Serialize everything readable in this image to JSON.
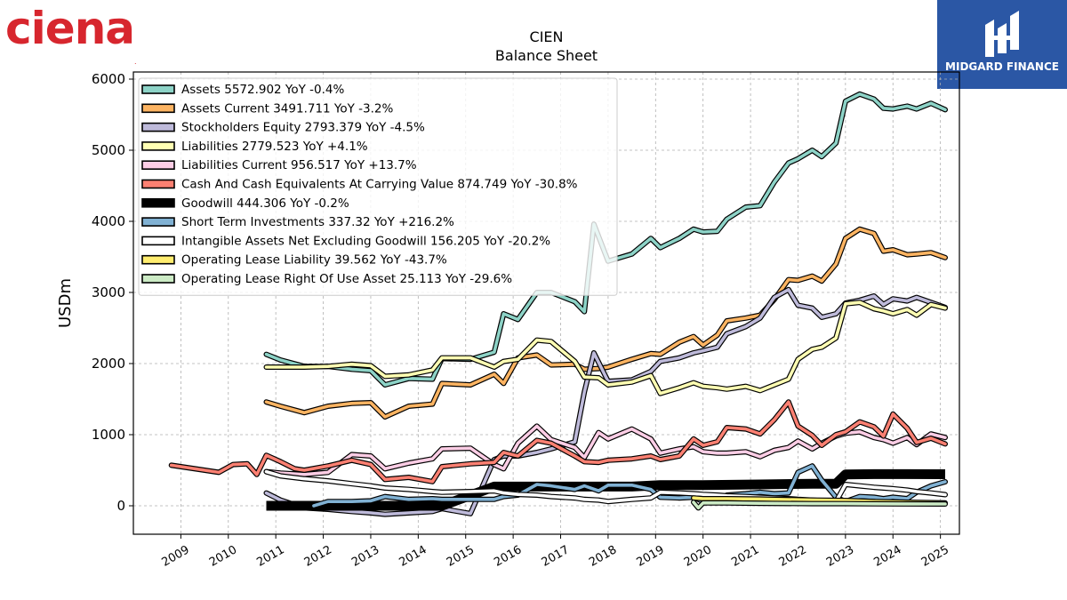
{
  "logos": {
    "left_text": "ciena",
    "left_mark": ".",
    "right_text": "MIDGARD FINANCE"
  },
  "colors": {
    "ciena_red": "#d7262e",
    "midgard_blue": "#2b57a5"
  },
  "chart_data": {
    "type": "line",
    "title": "CIEN",
    "subtitle": "Balance  Sheet",
    "xlabel": "",
    "ylabel": "USDm",
    "xlim": [
      2008.0,
      2025.4
    ],
    "ylim": [
      -400,
      6100
    ],
    "yticks": [
      0,
      1000,
      2000,
      3000,
      4000,
      5000,
      6000
    ],
    "xticks": [
      "2009",
      "2010",
      "2011",
      "2012",
      "2013",
      "2014",
      "2015",
      "2016",
      "2017",
      "2018",
      "2019",
      "2020",
      "2021",
      "2022",
      "2023",
      "2024",
      "2025"
    ],
    "grid": true,
    "legend_position": "top-left",
    "series": [
      {
        "name": "Assets  5572.902 YoY -0.4%",
        "color": "#8dd3c7",
        "x": [
          2010.8,
          2011.1,
          2011.6,
          2012.1,
          2012.6,
          2013.0,
          2013.3,
          2013.8,
          2014.3,
          2014.5,
          2015.1,
          2015.6,
          2015.8,
          2016.1,
          2016.5,
          2016.8,
          2017.3,
          2017.5,
          2017.7,
          2018.0,
          2018.5,
          2018.9,
          2019.1,
          2019.5,
          2019.8,
          2020.0,
          2020.3,
          2020.5,
          2020.9,
          2021.2,
          2021.5,
          2021.8,
          2022.0,
          2022.3,
          2022.5,
          2022.8,
          2023.0,
          2023.3,
          2023.6,
          2023.8,
          2024.0,
          2024.3,
          2024.5,
          2024.8,
          2025.1
        ],
        "y": [
          2130,
          2050,
          1960,
          1960,
          1920,
          1900,
          1700,
          1790,
          1780,
          2070,
          2060,
          2160,
          2700,
          2620,
          3000,
          3000,
          2870,
          2730,
          3960,
          3440,
          3540,
          3760,
          3630,
          3760,
          3890,
          3850,
          3860,
          4030,
          4200,
          4220,
          4550,
          4820,
          4880,
          5000,
          4910,
          5100,
          5690,
          5790,
          5720,
          5590,
          5580,
          5620,
          5580,
          5660,
          5570
        ]
      },
      {
        "name": "Assets Current  3491.711 YoY -3.2%",
        "color": "#fdb462",
        "x": [
          2010.8,
          2011.1,
          2011.6,
          2012.1,
          2012.6,
          2013.0,
          2013.3,
          2013.8,
          2014.3,
          2014.5,
          2015.1,
          2015.6,
          2015.8,
          2016.1,
          2016.5,
          2016.8,
          2017.3,
          2017.5,
          2017.8,
          2018.0,
          2018.5,
          2018.9,
          2019.1,
          2019.5,
          2019.8,
          2020.0,
          2020.3,
          2020.5,
          2020.9,
          2021.2,
          2021.5,
          2021.8,
          2022.0,
          2022.3,
          2022.5,
          2022.8,
          2023.0,
          2023.3,
          2023.6,
          2023.8,
          2024.0,
          2024.3,
          2024.5,
          2024.8,
          2025.1
        ],
        "y": [
          1460,
          1400,
          1310,
          1400,
          1440,
          1450,
          1250,
          1400,
          1430,
          1720,
          1700,
          1850,
          1720,
          2080,
          2120,
          1980,
          1990,
          1920,
          1930,
          1950,
          2060,
          2140,
          2130,
          2300,
          2380,
          2260,
          2400,
          2600,
          2640,
          2680,
          2900,
          3180,
          3170,
          3230,
          3160,
          3400,
          3760,
          3890,
          3830,
          3580,
          3600,
          3530,
          3540,
          3560,
          3490
        ]
      },
      {
        "name": "Stockholders Equity  2793.379 YoY -4.5%",
        "color": "#bebada",
        "x": [
          2010.8,
          2011.1,
          2011.6,
          2012.1,
          2012.6,
          2013.0,
          2013.3,
          2013.8,
          2014.3,
          2014.5,
          2015.1,
          2015.6,
          2015.8,
          2016.1,
          2016.5,
          2016.8,
          2017.3,
          2017.5,
          2017.7,
          2018.0,
          2018.5,
          2018.9,
          2019.1,
          2019.5,
          2019.8,
          2020.0,
          2020.3,
          2020.5,
          2020.9,
          2021.2,
          2021.5,
          2021.8,
          2022.0,
          2022.3,
          2022.5,
          2022.8,
          2023.0,
          2023.3,
          2023.6,
          2023.8,
          2024.0,
          2024.3,
          2024.5,
          2024.8,
          2025.1
        ],
        "y": [
          180,
          80,
          -30,
          -50,
          -80,
          -100,
          -120,
          -100,
          -80,
          -40,
          -110,
          650,
          700,
          700,
          750,
          800,
          900,
          1600,
          2150,
          1750,
          1770,
          1890,
          2030,
          2080,
          2150,
          2180,
          2230,
          2420,
          2520,
          2640,
          2930,
          3040,
          2820,
          2780,
          2650,
          2700,
          2850,
          2890,
          2950,
          2830,
          2910,
          2880,
          2930,
          2860,
          2790
        ]
      },
      {
        "name": "Liabilities  2779.523 YoY +4.1%",
        "color": "#ffffb3",
        "x": [
          2010.8,
          2011.1,
          2011.6,
          2012.1,
          2012.6,
          2013.0,
          2013.3,
          2013.8,
          2014.3,
          2014.5,
          2015.1,
          2015.6,
          2015.8,
          2016.1,
          2016.5,
          2016.8,
          2017.3,
          2017.5,
          2017.8,
          2018.0,
          2018.5,
          2018.9,
          2019.1,
          2019.5,
          2019.8,
          2020.0,
          2020.3,
          2020.5,
          2020.9,
          2021.2,
          2021.5,
          2021.8,
          2022.0,
          2022.3,
          2022.5,
          2022.8,
          2023.0,
          2023.3,
          2023.6,
          2023.8,
          2024.0,
          2024.3,
          2024.5,
          2024.8,
          2025.1
        ],
        "y": [
          1950,
          1950,
          1950,
          1960,
          1990,
          1970,
          1820,
          1840,
          1910,
          2080,
          2080,
          1950,
          2030,
          2060,
          2330,
          2310,
          2030,
          1810,
          1800,
          1700,
          1740,
          1830,
          1580,
          1660,
          1730,
          1680,
          1660,
          1640,
          1680,
          1620,
          1700,
          1780,
          2060,
          2200,
          2230,
          2360,
          2840,
          2860,
          2770,
          2740,
          2700,
          2760,
          2680,
          2830,
          2780
        ]
      },
      {
        "name": "Liabilities Current  956.517 YoY +13.7%",
        "color": "#fccde5",
        "x": [
          2010.8,
          2011.1,
          2011.6,
          2012.1,
          2012.6,
          2013.0,
          2013.3,
          2013.8,
          2014.3,
          2014.5,
          2015.1,
          2015.6,
          2015.8,
          2016.1,
          2016.5,
          2016.8,
          2017.3,
          2017.5,
          2017.8,
          2018.0,
          2018.5,
          2018.9,
          2019.1,
          2019.5,
          2019.8,
          2020.0,
          2020.3,
          2020.5,
          2020.9,
          2021.2,
          2021.5,
          2021.8,
          2022.0,
          2022.3,
          2022.5,
          2022.8,
          2023.0,
          2023.3,
          2023.6,
          2023.8,
          2024.0,
          2024.3,
          2024.5,
          2024.8,
          2025.1
        ],
        "y": [
          480,
          460,
          440,
          470,
          720,
          700,
          520,
          600,
          660,
          800,
          810,
          580,
          520,
          880,
          1120,
          930,
          820,
          680,
          1030,
          940,
          1080,
          940,
          740,
          800,
          830,
          760,
          740,
          740,
          760,
          690,
          780,
          820,
          910,
          800,
          880,
          980,
          1020,
          1040,
          960,
          930,
          880,
          960,
          860,
          1010,
          960
        ]
      },
      {
        "name": "Cash And Cash Equivalents At Carrying Value  874.749 YoY -30.8%",
        "color": "#fb8072",
        "x": [
          2008.8,
          2009.8,
          2010.1,
          2010.4,
          2010.6,
          2010.8,
          2011.1,
          2011.4,
          2011.6,
          2012.1,
          2012.6,
          2013.0,
          2013.3,
          2013.8,
          2014.3,
          2014.5,
          2015.1,
          2015.6,
          2015.8,
          2016.1,
          2016.5,
          2016.8,
          2017.3,
          2017.5,
          2017.8,
          2018.0,
          2018.5,
          2018.9,
          2019.1,
          2019.5,
          2019.8,
          2020.0,
          2020.3,
          2020.5,
          2020.9,
          2021.2,
          2021.5,
          2021.8,
          2022.0,
          2022.3,
          2022.5,
          2022.8,
          2023.0,
          2023.3,
          2023.6,
          2023.8,
          2024.0,
          2024.3,
          2024.5,
          2024.8,
          2025.1
        ],
        "y": [
          570,
          470,
          580,
          590,
          440,
          710,
          620,
          520,
          500,
          560,
          640,
          580,
          370,
          400,
          340,
          550,
          590,
          610,
          750,
          700,
          920,
          880,
          700,
          620,
          610,
          640,
          660,
          700,
          650,
          700,
          940,
          850,
          900,
          1100,
          1080,
          1010,
          1210,
          1460,
          1120,
          990,
          850,
          1000,
          1040,
          1180,
          1110,
          980,
          1290,
          1090,
          890,
          950,
          870
        ]
      },
      {
        "name": "Goodwill  444.306 YoY -0.2%",
        "color": "#000000",
        "x": [
          2010.8,
          2014.5,
          2015.6,
          2016.8,
          2017.8,
          2018.5,
          2019.1,
          2020.0,
          2021.2,
          2022.3,
          2022.8,
          2023.0,
          2023.6,
          2024.3,
          2025.1
        ],
        "y": [
          0,
          0,
          270,
          270,
          270,
          270,
          290,
          290,
          300,
          310,
          310,
          440,
          445,
          445,
          444
        ]
      },
      {
        "name": "Short Term Investments  337.32 YoY +216.2%",
        "color": "#80b1d3",
        "x": [
          2011.8,
          2012.1,
          2012.6,
          2013.0,
          2013.3,
          2013.8,
          2014.3,
          2014.5,
          2015.1,
          2015.6,
          2015.8,
          2016.1,
          2016.5,
          2016.8,
          2017.3,
          2017.5,
          2017.8,
          2018.0,
          2018.5,
          2018.9,
          2019.1,
          2019.5,
          2019.8,
          2020.0,
          2020.3,
          2020.5,
          2020.9,
          2021.2,
          2021.5,
          2021.8,
          2022.0,
          2022.3,
          2022.5,
          2022.8,
          2023.0,
          2023.3,
          2023.6,
          2023.8,
          2024.0,
          2024.3,
          2024.5,
          2024.8,
          2025.1
        ],
        "y": [
          0,
          60,
          60,
          70,
          130,
          90,
          100,
          90,
          90,
          90,
          130,
          150,
          300,
          280,
          230,
          280,
          210,
          290,
          290,
          230,
          120,
          110,
          120,
          60,
          80,
          150,
          170,
          190,
          170,
          180,
          470,
          560,
          360,
          120,
          60,
          130,
          120,
          100,
          120,
          100,
          190,
          280,
          337
        ]
      },
      {
        "name": "Intangible Assets Net Excluding Goodwill  156.205 YoY -20.2%",
        "color": "#ffffff",
        "x": [
          2010.8,
          2011.1,
          2011.6,
          2012.1,
          2012.6,
          2013.0,
          2013.3,
          2013.8,
          2014.3,
          2014.5,
          2015.1,
          2015.6,
          2015.8,
          2016.1,
          2016.5,
          2016.8,
          2017.3,
          2017.5,
          2017.8,
          2018.0,
          2018.5,
          2018.9,
          2019.1,
          2019.5,
          2019.8,
          2020.0,
          2020.3,
          2020.5,
          2020.9,
          2021.2,
          2021.5,
          2021.8,
          2022.0,
          2022.3,
          2022.5,
          2022.8,
          2023.0,
          2023.3,
          2023.6,
          2023.8,
          2024.0,
          2024.3,
          2024.5,
          2024.8,
          2025.1
        ],
        "y": [
          480,
          420,
          380,
          350,
          310,
          280,
          250,
          230,
          200,
          190,
          200,
          210,
          180,
          160,
          150,
          130,
          110,
          90,
          80,
          60,
          90,
          110,
          190,
          180,
          170,
          160,
          150,
          140,
          130,
          120,
          110,
          100,
          90,
          80,
          70,
          60,
          300,
          280,
          260,
          250,
          240,
          220,
          200,
          180,
          156
        ]
      },
      {
        "name": "Operating Lease Liability  39.562 YoY -43.7%",
        "color": "#ffed6f",
        "x": [
          2019.8,
          2020.0,
          2020.5,
          2021.2,
          2022.3,
          2023.0,
          2023.6,
          2024.3,
          2025.1
        ],
        "y": [
          110,
          100,
          100,
          95,
          80,
          75,
          60,
          50,
          40
        ]
      },
      {
        "name": "Operating Lease Right Of Use Asset  25.113 YoY -29.6%",
        "color": "#ccebc5",
        "x": [
          2019.8,
          2019.9,
          2020.0,
          2020.5,
          2021.2,
          2022.3,
          2023.0,
          2023.6,
          2024.3,
          2025.1
        ],
        "y": [
          50,
          -30,
          40,
          40,
          35,
          30,
          30,
          28,
          26,
          25
        ]
      }
    ]
  }
}
